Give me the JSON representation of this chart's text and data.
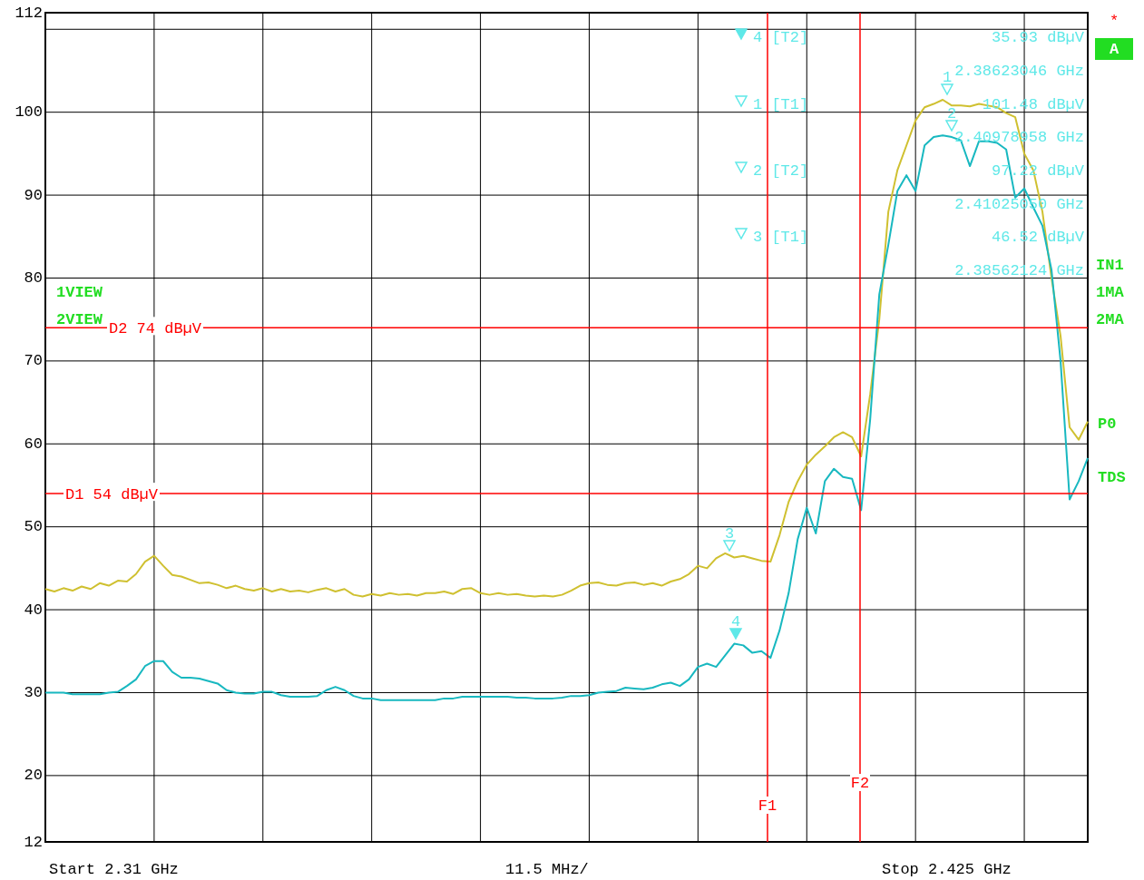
{
  "chart_data": {
    "type": "line",
    "ylim": [
      12,
      112
    ],
    "categories": [
      null,
      null,
      null,
      null,
      null,
      null,
      null,
      null,
      null,
      null,
      null,
      null,
      null,
      null,
      null,
      null,
      null,
      null,
      null,
      null,
      null,
      null,
      null,
      null,
      null,
      null,
      null,
      null,
      null,
      null,
      null,
      null,
      null,
      null,
      null,
      null,
      null,
      null,
      null,
      null,
      null,
      null,
      null,
      null,
      null,
      null,
      null,
      null,
      null,
      null,
      null,
      null,
      null,
      null,
      null,
      null,
      null,
      null,
      null,
      null,
      null,
      null,
      null,
      null,
      null,
      null,
      null,
      null,
      null,
      null,
      null,
      null,
      null,
      null,
      null,
      null,
      null,
      null,
      null,
      null,
      null,
      null,
      null,
      null,
      null,
      null,
      null,
      null,
      null,
      null,
      null,
      null,
      null,
      null,
      null,
      null,
      null,
      null,
      null,
      null,
      null,
      null,
      null,
      null,
      null,
      null,
      null,
      null,
      null,
      null,
      null,
      null,
      null,
      null,
      null,
      null
    ],
    "yticks": [
      12,
      20,
      30,
      40,
      50,
      60,
      70,
      80,
      90,
      100,
      {
        "value": 110,
        "label": null
      },
      112
    ],
    "tick_labels": "y",
    "grid": true,
    "marker": "none",
    "line_style": "solid",
    "series": [
      {
        "color": "#cfc030",
        "values": [
          42.5,
          42.2,
          42.6,
          42.3,
          42.8,
          42.5,
          43.2,
          42.9,
          43.5,
          43.4,
          44.3,
          45.8,
          46.5,
          45.3,
          44.2,
          44,
          43.6,
          43.2,
          43.3,
          43,
          42.6,
          42.9,
          42.5,
          42.3,
          42.6,
          42.2,
          42.5,
          42.2,
          42.3,
          42.1,
          42.4,
          42.6,
          42.2,
          42.5,
          41.8,
          41.6,
          41.9,
          41.7,
          42,
          41.8,
          41.9,
          41.7,
          42,
          42,
          42.2,
          41.9,
          42.5,
          42.6,
          42,
          41.8,
          42,
          41.8,
          41.9,
          41.7,
          41.6,
          41.7,
          41.6,
          41.8,
          42.3,
          42.9,
          43.2,
          43.3,
          43,
          42.9,
          43.2,
          43.3,
          43,
          43.2,
          42.9,
          43.4,
          43.7,
          44.3,
          45.3,
          45,
          46.2,
          46.8,
          46.3,
          46.5,
          46.2,
          45.9,
          45.8,
          49,
          53,
          55.5,
          57.5,
          58.7,
          59.7,
          60.8,
          61.4,
          60.8,
          58.5,
          66,
          75,
          88,
          93,
          96,
          99,
          100.6,
          101,
          101.5,
          100.8,
          100.8,
          100.7,
          101,
          100.8,
          100.6,
          99.9,
          99.4,
          95,
          93,
          88,
          80,
          73,
          62,
          60.5,
          62.7
        ]
      },
      {
        "color": "#18b8c0",
        "values": [
          30,
          30,
          30,
          29.8,
          29.8,
          29.8,
          29.8,
          30,
          30.1,
          30.8,
          31.6,
          33.2,
          33.8,
          33.8,
          32.5,
          31.8,
          31.8,
          31.7,
          31.4,
          31.1,
          30.3,
          30,
          29.9,
          29.9,
          30.1,
          30.1,
          29.7,
          29.5,
          29.5,
          29.5,
          29.6,
          30.3,
          30.7,
          30.3,
          29.6,
          29.3,
          29.3,
          29.1,
          29.1,
          29.1,
          29.1,
          29.1,
          29.1,
          29.1,
          29.3,
          29.3,
          29.5,
          29.5,
          29.5,
          29.5,
          29.5,
          29.5,
          29.4,
          29.4,
          29.3,
          29.3,
          29.3,
          29.4,
          29.6,
          29.6,
          29.7,
          30,
          30.1,
          30.2,
          30.6,
          30.5,
          30.4,
          30.6,
          31,
          31.2,
          30.8,
          31.6,
          33.1,
          33.5,
          33.1,
          34.5,
          35.9,
          35.7,
          34.8,
          35,
          34.2,
          37.5,
          42,
          48.5,
          52.3,
          49.2,
          55.5,
          57,
          56,
          55.8,
          52,
          63,
          78,
          84,
          90.5,
          92.4,
          90.5,
          96,
          97,
          97.2,
          97,
          96.6,
          93.5,
          96.5,
          96.5,
          96.3,
          95.5,
          89.7,
          90.8,
          88.5,
          86.3,
          81,
          70,
          53.3,
          55.5,
          58.3
        ]
      }
    ],
    "ref_lines": [
      {
        "axis": "y",
        "value": 74,
        "label": "D2 74 dBµV",
        "color": "#ff0000"
      },
      {
        "axis": "y",
        "value": 54,
        "label": "D1 54 dBµV",
        "color": "#ff0000"
      }
    ],
    "annotations": [
      "4 [T2]",
      "35.93 dBµV",
      "2.38623046 GHz",
      "1 [T1]",
      "101.48 dBµV",
      "2.40978958 GHz",
      "2 [T2]",
      "97.22 dBµV",
      "2.41025050 GHz",
      "3 [T1]",
      "46.52 dBµV",
      "2.38562124 GHz",
      "1VIEW",
      "2VIEW",
      "*",
      "A",
      "IN1",
      "1MA",
      "2MA",
      "P0",
      "TDS",
      "Start 2.31 GHz",
      "11.5 MHz/",
      "Stop 2.425 GHz",
      "1",
      "2",
      "3",
      "4",
      "F1",
      "F2"
    ]
  }
}
